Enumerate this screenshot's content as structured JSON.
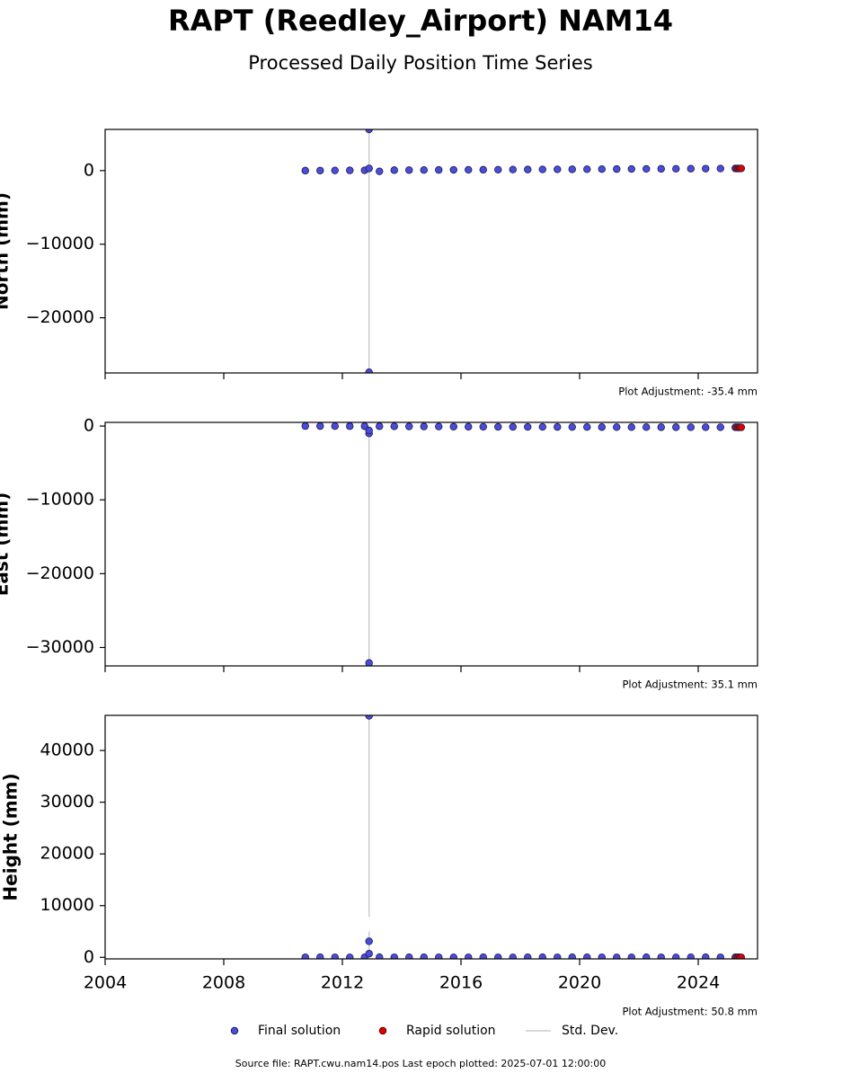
{
  "figure": {
    "title": "RAPT (Reedley_Airport) NAM14",
    "subtitle": "Processed Daily Position Time Series",
    "source": "Source file: RAPT.cwu.nam14.pos  Last epoch plotted: 2025-07-01 12:00:00"
  },
  "chart_data": [
    {
      "type": "scatter",
      "ylabel": "North (mm)",
      "annotation": "Plot Adjustment: -35.4 mm",
      "xlim": [
        2004,
        2026
      ],
      "xticks": [
        2004,
        2008,
        2012,
        2016,
        2020,
        2024
      ],
      "show_xtick_labels": false,
      "ylim": [
        -27500,
        5600
      ],
      "yticks": [
        {
          "value": -20000,
          "label": "−20000"
        },
        {
          "value": -10000,
          "label": "−10000"
        },
        0
      ],
      "series": [
        {
          "name": "Final solution",
          "color": "#4b4bdf",
          "x": [
            2010.75,
            2011.25,
            2011.75,
            2012.25,
            2012.75,
            2013.25,
            2013.75,
            2014.25,
            2014.75,
            2015.25,
            2015.75,
            2016.25,
            2016.75,
            2017.25,
            2017.75,
            2018.25,
            2018.75,
            2019.25,
            2019.75,
            2020.25,
            2020.75,
            2021.25,
            2021.75,
            2022.25,
            2022.75,
            2023.25,
            2023.75,
            2024.25,
            2024.75,
            2025.25,
            2012.9,
            2012.9,
            2012.9
          ],
          "values": [
            0,
            10,
            20,
            30,
            40,
            -100,
            60,
            70,
            80,
            90,
            100,
            110,
            120,
            130,
            140,
            150,
            160,
            170,
            180,
            190,
            200,
            210,
            220,
            230,
            240,
            250,
            260,
            270,
            280,
            290,
            5600,
            -27400,
            300
          ]
        },
        {
          "name": "Rapid solution",
          "color": "#e00000",
          "x": [
            2025.3,
            2025.35,
            2025.4,
            2025.45
          ],
          "values": [
            280,
            290,
            285,
            295
          ]
        },
        {
          "name": "Std. Dev.",
          "color": "#cccccc",
          "x": [
            2012.9
          ],
          "low": [
            -27400
          ],
          "high": [
            5600
          ]
        }
      ]
    },
    {
      "type": "scatter",
      "ylabel": "East (mm)",
      "annotation": "Plot Adjustment: 35.1 mm",
      "xlim": [
        2004,
        2026
      ],
      "xticks": [
        2004,
        2008,
        2012,
        2016,
        2020,
        2024
      ],
      "show_xtick_labels": false,
      "ylim": [
        -32500,
        500
      ],
      "yticks": [
        {
          "value": -30000,
          "label": "−30000"
        },
        {
          "value": -20000,
          "label": "−20000"
        },
        {
          "value": -10000,
          "label": "−10000"
        },
        0
      ],
      "series": [
        {
          "name": "Final solution",
          "color": "#4b4bdf",
          "x": [
            2010.75,
            2011.25,
            2011.75,
            2012.25,
            2012.75,
            2013.25,
            2013.75,
            2014.25,
            2014.75,
            2015.25,
            2015.75,
            2016.25,
            2016.75,
            2017.25,
            2017.75,
            2018.25,
            2018.75,
            2019.25,
            2019.75,
            2020.25,
            2020.75,
            2021.25,
            2021.75,
            2022.25,
            2022.75,
            2023.25,
            2023.75,
            2024.25,
            2024.75,
            2025.25,
            2012.9,
            2012.9,
            2012.9
          ],
          "values": [
            0,
            -5,
            -10,
            -15,
            -20,
            -30,
            -40,
            -50,
            -60,
            -70,
            -80,
            -90,
            -100,
            -105,
            -110,
            -115,
            -120,
            -125,
            -130,
            -135,
            -140,
            -145,
            -150,
            -150,
            -155,
            -155,
            -160,
            -160,
            -165,
            -165,
            -32100,
            -1000,
            -600
          ]
        },
        {
          "name": "Rapid solution",
          "color": "#e00000",
          "x": [
            2025.3,
            2025.35,
            2025.4,
            2025.45
          ],
          "values": [
            -165,
            -170,
            -168,
            -172
          ]
        },
        {
          "name": "Std. Dev.",
          "color": "#cccccc",
          "x": [
            2012.9
          ],
          "low": [
            -32100
          ],
          "high": [
            0
          ]
        }
      ]
    },
    {
      "type": "scatter",
      "ylabel": "Height (mm)",
      "annotation": "Plot Adjustment: 50.8 mm",
      "xlim": [
        2004,
        2026
      ],
      "xticks": [
        2004,
        2008,
        2012,
        2016,
        2020,
        2024
      ],
      "show_xtick_labels": true,
      "ylim": [
        -300,
        46800
      ],
      "yticks": [
        0,
        10000,
        20000,
        30000,
        40000
      ],
      "series": [
        {
          "name": "Final solution",
          "color": "#4b4bdf",
          "x": [
            2010.75,
            2011.25,
            2011.75,
            2012.25,
            2012.75,
            2013.25,
            2013.75,
            2014.25,
            2014.75,
            2015.25,
            2015.75,
            2016.25,
            2016.75,
            2017.25,
            2017.75,
            2018.25,
            2018.75,
            2019.25,
            2019.75,
            2020.25,
            2020.75,
            2021.25,
            2021.75,
            2022.25,
            2022.75,
            2023.25,
            2023.75,
            2024.25,
            2024.75,
            2025.25,
            2012.9,
            2012.9,
            2012.9
          ],
          "values": [
            0,
            10,
            0,
            -10,
            20,
            10,
            0,
            10,
            20,
            0,
            -10,
            0,
            10,
            0,
            -10,
            20,
            10,
            0,
            10,
            20,
            0,
            -10,
            0,
            10,
            0,
            -10,
            20,
            10,
            0,
            10,
            46700,
            3100,
            700
          ]
        },
        {
          "name": "Rapid solution",
          "color": "#e00000",
          "x": [
            2025.3,
            2025.35,
            2025.4,
            2025.45
          ],
          "values": [
            0,
            10,
            -10,
            0
          ]
        },
        {
          "name": "Std. Dev.",
          "color": "#cccccc",
          "x": [
            2012.9,
            2012.9
          ],
          "low": [
            7800,
            0
          ],
          "high": [
            46700,
            5000
          ]
        }
      ]
    }
  ]
}
